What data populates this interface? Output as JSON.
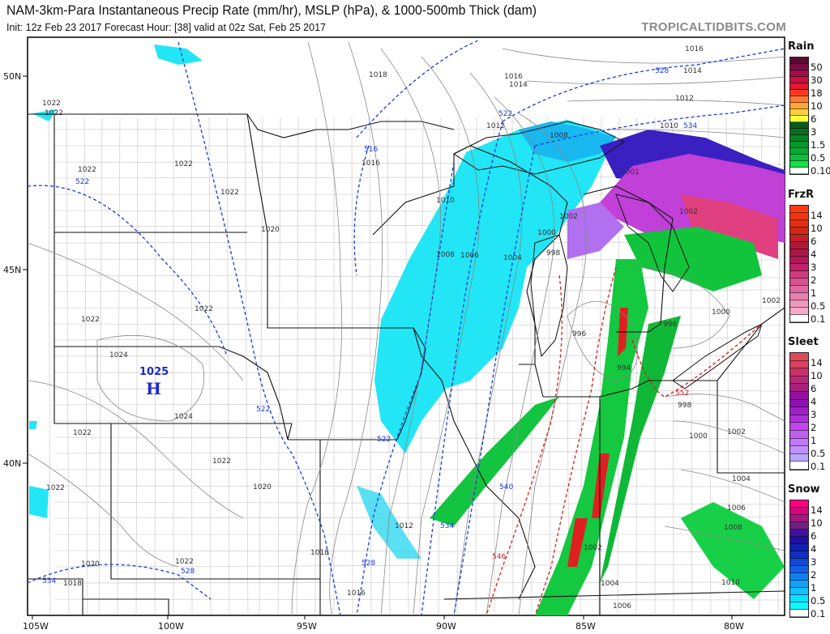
{
  "header": {
    "title": "NAM-3km-Para Instantaneous Precip Rate (mm/hr), MSLP (hPa), & 1000-500mb Thick (dam)",
    "subtitle": "Init: 12z Feb 23 2017   Forecast Hour: [38]   valid at 02z Sat, Feb 25 2017",
    "brand": "TROPICALTIDBITS.COM"
  },
  "map": {
    "lat_labels": [
      "50N",
      "45N",
      "40N"
    ],
    "lon_labels": [
      "105W",
      "100W",
      "95W",
      "90W",
      "85W",
      "80W"
    ],
    "high": {
      "value": "1025",
      "letter": "H"
    },
    "isobar_labels": [
      "1018",
      "1016",
      "1014",
      "1016",
      "1014",
      "1012",
      "1012",
      "1008",
      "1010",
      "1016",
      "1022",
      "1022",
      "1022",
      "1022",
      "1022",
      "1020",
      "1022",
      "1022",
      "1024",
      "1024",
      "1022",
      "1022",
      "1020",
      "1022",
      "1020",
      "1022",
      "1018",
      "1018",
      "1016",
      "1012",
      "1008",
      "1006",
      "1004",
      "1002",
      "1000",
      "998",
      "1010",
      "996",
      "994",
      "996",
      "1000",
      "1002",
      "1002",
      "1001",
      "998",
      "1000",
      "1002",
      "1004",
      "1006",
      "1008",
      "1002",
      "1004",
      "1006",
      "1010"
    ],
    "thickness_labels": [
      "528",
      "522",
      "534",
      "516",
      "522",
      "522",
      "522",
      "534",
      "528",
      "528",
      "534",
      "540"
    ],
    "warm_thickness_labels": [
      "552",
      "546"
    ],
    "colors": {
      "snow": "#20e8f8",
      "mix": "#c040e0",
      "rain": "#10c040",
      "border": "#111111",
      "county": "#b8b8b8",
      "isobar": "#777777",
      "thick_cold": "#1a3ae0",
      "thick_warm": "#e01a1a"
    }
  },
  "legend": [
    {
      "title": "Rain",
      "labels": [
        "50",
        "30",
        "18",
        "10",
        "6",
        "3",
        "1.5",
        "0.5",
        "0.10"
      ],
      "colors": [
        "#5a0a35",
        "#7a0d3f",
        "#a00f45",
        "#c8103e",
        "#e01830",
        "#ff3b20",
        "#ff7a30",
        "#ffa535",
        "#ffd040",
        "#ffff40",
        "#0b5a1c",
        "#0b6e20",
        "#0a8226",
        "#07962c",
        "#06aa32",
        "#0ac03a",
        "#14e046",
        "#ffffff"
      ]
    },
    {
      "title": "FrzR",
      "labels": [
        "14",
        "10",
        "6",
        "4",
        "3",
        "2",
        "1",
        "0.5",
        "0.1"
      ],
      "colors": [
        "#ff3a10",
        "#f03510",
        "#e03010",
        "#d02818",
        "#c02028",
        "#b01838",
        "#a81848",
        "#b01858",
        "#c02068",
        "#d03a80",
        "#d85090",
        "#e068a0",
        "#e880b0",
        "#f098bc",
        "#f8a8c8",
        "#ffffff"
      ]
    },
    {
      "title": "Sleet",
      "labels": [
        "14",
        "10",
        "6",
        "4",
        "3",
        "2",
        "1",
        "0.5",
        "0.1"
      ],
      "colors": [
        "#e04858",
        "#d84060",
        "#c83068",
        "#b82878",
        "#a82080",
        "#9810a0",
        "#9010b8",
        "#a020c8",
        "#b030d8",
        "#c048e8",
        "#c060f0",
        "#c078f8",
        "#c090ff",
        "#b8a8ff",
        "#ffffff"
      ]
    },
    {
      "title": "Snow",
      "labels": [
        "14",
        "10",
        "6",
        "4",
        "3",
        "2",
        "1",
        "0.5",
        "0.1"
      ],
      "colors": [
        "#ff0080",
        "#d00880",
        "#a01880",
        "#702080",
        "#4010a0",
        "#2010a0",
        "#1020b0",
        "#1030c0",
        "#1048d8",
        "#1060e8",
        "#1080f0",
        "#10a0f8",
        "#10c0ff",
        "#10e0ff",
        "#10f8ff",
        "#ffffff"
      ]
    }
  ]
}
